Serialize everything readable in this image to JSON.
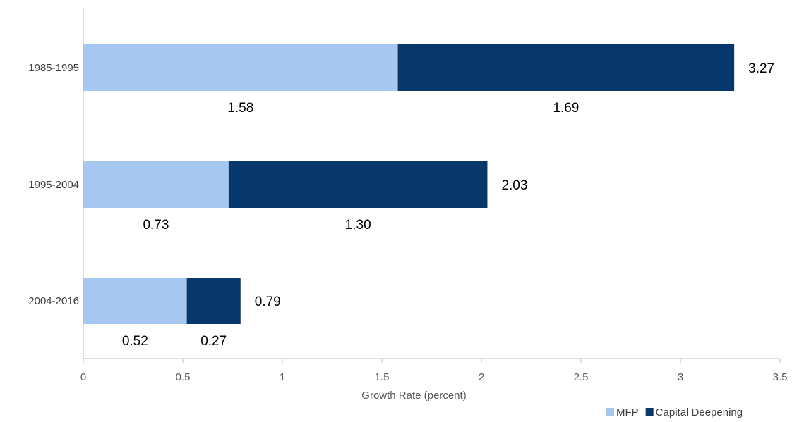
{
  "chart_data": {
    "type": "bar",
    "orientation": "horizontal",
    "stacked": true,
    "categories": [
      "1985-1995",
      "1995-2004",
      "2004-2016"
    ],
    "series": [
      {
        "name": "MFP",
        "values": [
          1.58,
          0.73,
          0.52
        ],
        "labels": [
          "1.58",
          "0.73",
          "0.52"
        ],
        "color": "#a6c8f0"
      },
      {
        "name": "Capital Deepening",
        "values": [
          1.69,
          1.3,
          0.27
        ],
        "labels": [
          "1.69",
          "1.30",
          "0.27"
        ],
        "color": "#08376b"
      }
    ],
    "totals": [
      3.27,
      2.03,
      0.79
    ],
    "total_labels": [
      "3.27",
      "2.03",
      "0.79"
    ],
    "xlabel": "Growth Rate (percent)",
    "ylabel": "",
    "xlim": [
      0,
      3.5
    ],
    "xticks": [
      0,
      0.5,
      1,
      1.5,
      2,
      2.5,
      3,
      3.5
    ],
    "xtick_labels": [
      "0",
      "0.5",
      "1",
      "1.5",
      "2",
      "2.5",
      "3",
      "3.5"
    ],
    "grid": false,
    "legend_position": "bottom-right"
  }
}
